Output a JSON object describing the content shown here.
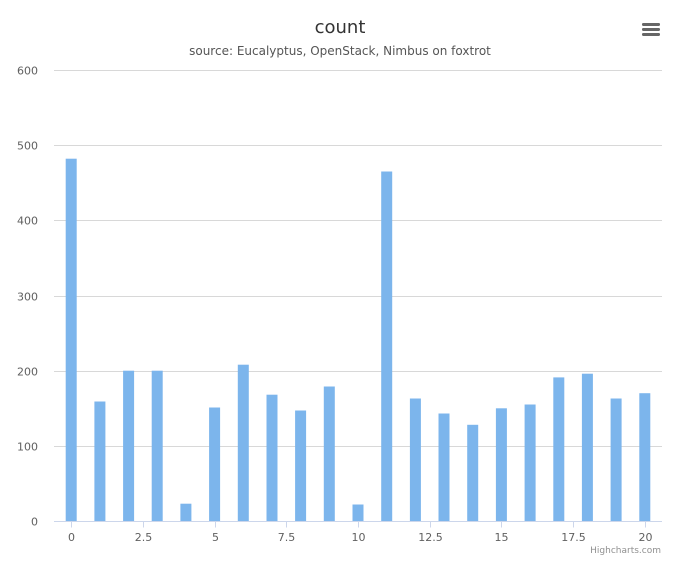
{
  "chart_data": {
    "type": "bar",
    "title": "count",
    "subtitle": "source: Eucalyptus, OpenStack, Nimbus on foxtrot",
    "x": [
      0,
      1,
      2,
      3,
      4,
      5,
      6,
      7,
      8,
      9,
      10,
      11,
      12,
      13,
      14,
      15,
      16,
      17,
      18,
      19,
      20
    ],
    "values": [
      482,
      159,
      200,
      200,
      23,
      151,
      208,
      168,
      147,
      179,
      22,
      465,
      163,
      143,
      128,
      150,
      155,
      191,
      196,
      163,
      170
    ],
    "xlim": [
      -0.6,
      20.6
    ],
    "ylim": [
      0,
      600
    ],
    "xticks": [
      0,
      2.5,
      5,
      7.5,
      10,
      12.5,
      15,
      17.5,
      20
    ],
    "xtick_labels": [
      "0",
      "2.5",
      "5",
      "7.5",
      "10",
      "12.5",
      "15",
      "17.5",
      "20"
    ],
    "yticks": [
      0,
      100,
      200,
      300,
      400,
      500,
      600
    ],
    "ytick_labels": [
      "0",
      "100",
      "200",
      "300",
      "400",
      "500",
      "600"
    ],
    "grid": true,
    "legend": false,
    "bar_color": "#7cb5ec"
  },
  "credits": "Highcharts.com",
  "menu_icon": "hamburger-menu-icon"
}
